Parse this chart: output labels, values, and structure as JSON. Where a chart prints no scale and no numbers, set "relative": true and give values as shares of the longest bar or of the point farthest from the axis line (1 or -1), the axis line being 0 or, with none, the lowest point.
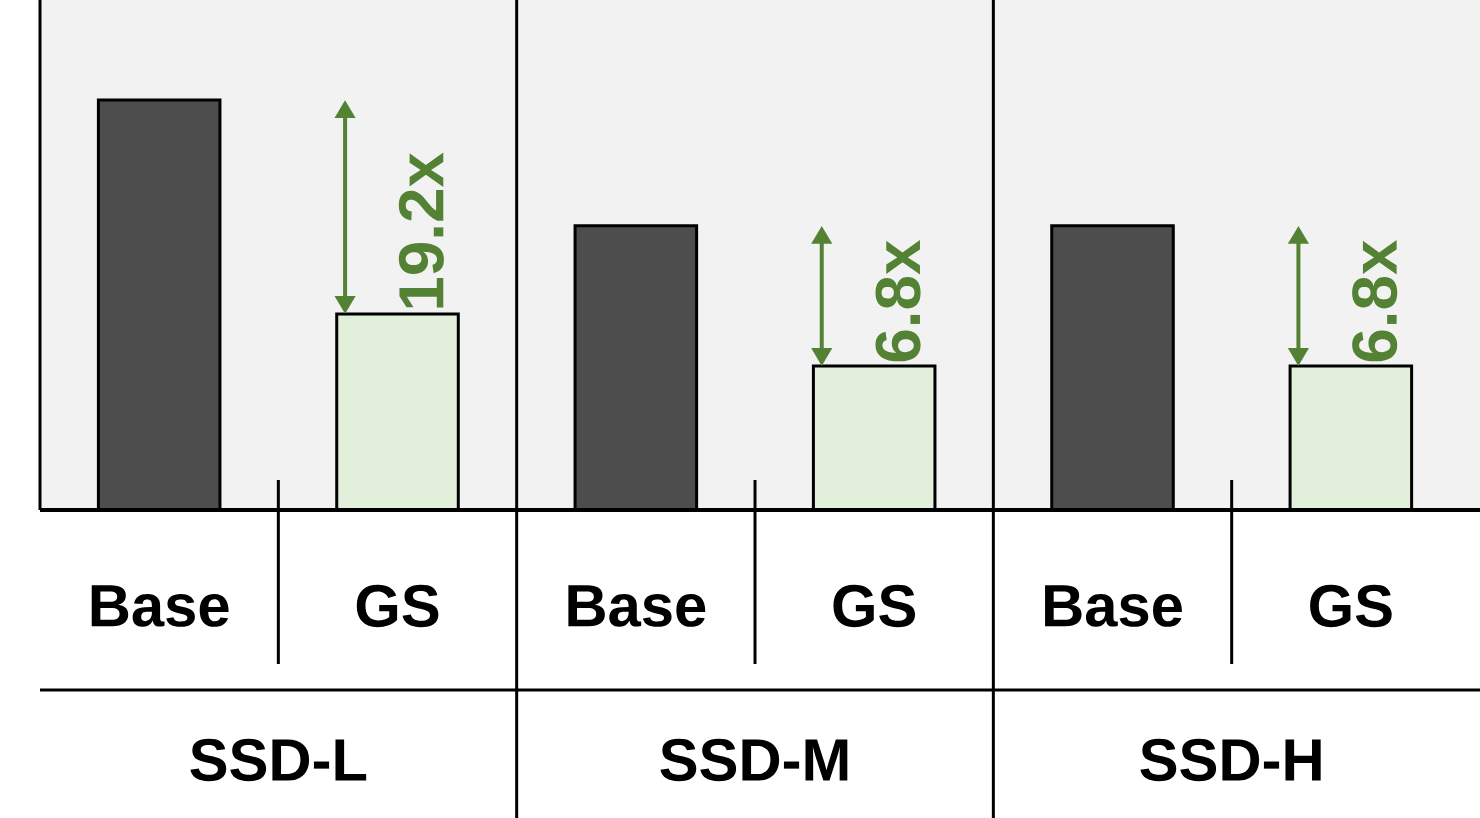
{
  "chart_data": {
    "type": "bar",
    "relative": true,
    "categories": [
      "Base",
      "GS",
      "Base",
      "GS",
      "Base",
      "GS"
    ],
    "values": [
      1,
      0.478,
      0.693,
      0.351,
      0.693,
      0.351
    ],
    "colors": [
      "#4d4d4d",
      "#e2efda",
      "#4d4d4d",
      "#e2efda",
      "#4d4d4d",
      "#e2efda"
    ],
    "annotations": [
      "19.2x",
      "6.8x",
      "6.8x",
      "SSD-L",
      "SSD-M",
      "SSD-H"
    ]
  }
}
